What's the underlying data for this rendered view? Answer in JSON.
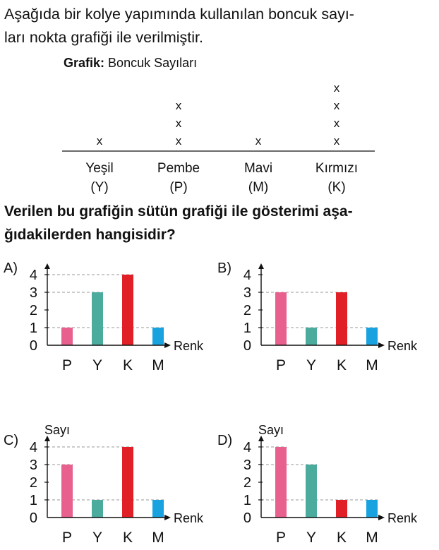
{
  "intro": {
    "line1": "Aşağıda bir kolye yapımında kullanılan boncuk sayı-",
    "line2": "ları nokta grafiği ile verilmiştir."
  },
  "question": {
    "line1": "Verilen bu grafiğin sütün grafiği ile gösterimi aşa-",
    "line2": "ğıdakilerden hangisidir?"
  },
  "colors": {
    "P": "#e8608e",
    "Y": "#4bab9c",
    "K": "#e11f26",
    "M": "#18a3e0",
    "grid": "#9a9a9a",
    "ink": "#111111"
  },
  "chart_data": [
    {
      "type": "dot",
      "title_label": "Grafik:",
      "title": "Boncuk Sayıları",
      "marker": "x",
      "categories": [
        {
          "name": "Yeşil",
          "abbr": "(Y)",
          "value": 1
        },
        {
          "name": "Pembe",
          "abbr": "(P)",
          "value": 3
        },
        {
          "name": "Mavi",
          "abbr": "(M)",
          "value": 1
        },
        {
          "name": "Kırmızı",
          "abbr": "(K)",
          "value": 4
        }
      ]
    },
    {
      "type": "bar",
      "option": "A)",
      "ylabel": "",
      "xlabel": "Renk",
      "categories": [
        "P",
        "Y",
        "K",
        "M"
      ],
      "values": [
        1,
        3,
        4,
        1
      ],
      "yticks": [
        0,
        1,
        2,
        3,
        4
      ],
      "ylim": [
        0,
        4
      ]
    },
    {
      "type": "bar",
      "option": "B)",
      "ylabel": "",
      "xlabel": "Renk",
      "categories": [
        "P",
        "Y",
        "K",
        "M"
      ],
      "values": [
        3,
        1,
        3,
        1
      ],
      "yticks": [
        0,
        1,
        2,
        3,
        4
      ],
      "ylim": [
        0,
        4
      ]
    },
    {
      "type": "bar",
      "option": "C)",
      "ylabel": "Sayı",
      "xlabel": "Renk",
      "categories": [
        "P",
        "Y",
        "K",
        "M"
      ],
      "values": [
        3,
        1,
        4,
        1
      ],
      "yticks": [
        0,
        1,
        2,
        3,
        4
      ],
      "ylim": [
        0,
        4
      ]
    },
    {
      "type": "bar",
      "option": "D)",
      "ylabel": "Sayı",
      "xlabel": "Renk",
      "categories": [
        "P",
        "Y",
        "K",
        "M"
      ],
      "values": [
        4,
        3,
        1,
        1
      ],
      "yticks": [
        0,
        1,
        2,
        3,
        4
      ],
      "ylim": [
        0,
        4
      ]
    }
  ]
}
